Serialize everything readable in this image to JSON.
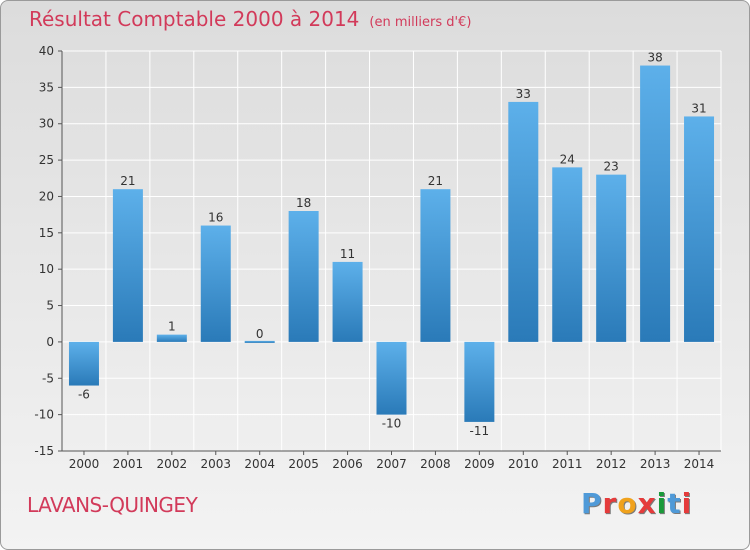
{
  "header": {
    "title": "Résultat Comptable 2000 à 2014",
    "unit": "(en milliers d'€)"
  },
  "footer": {
    "commune": "LAVANS-QUINGEY",
    "logo_text": "Proxiti",
    "logo_colors": [
      "#4f9ad8",
      "#e53b3b",
      "#f0a21c",
      "#e53b3b",
      "#1a9a3a",
      "#4f9ad8",
      "#e53b3b"
    ]
  },
  "colors": {
    "bar_light": "#5db0ea",
    "bar_dark": "#2a7ab8",
    "title": "#d23a5a",
    "grid": "#ffffff"
  },
  "chart_data": {
    "type": "bar",
    "title": "Résultat Comptable 2000 à 2014",
    "subtitle": "(en milliers d'€)",
    "xlabel": "",
    "ylabel": "",
    "categories": [
      "2000",
      "2001",
      "2002",
      "2003",
      "2004",
      "2005",
      "2006",
      "2007",
      "2008",
      "2009",
      "2010",
      "2011",
      "2012",
      "2013",
      "2014"
    ],
    "values": [
      -6,
      21,
      1,
      16,
      0,
      18,
      11,
      -10,
      21,
      -11,
      33,
      24,
      23,
      38,
      31
    ],
    "value_labels": [
      "-6",
      "21",
      "1",
      "16",
      "0",
      "18",
      "11",
      "-10",
      "21",
      "-11",
      "33",
      "24",
      "23",
      "38",
      "31"
    ],
    "ylim": [
      -15,
      40
    ],
    "yticks": [
      -15,
      -10,
      -5,
      0,
      5,
      10,
      15,
      20,
      25,
      30,
      35,
      40
    ],
    "ytick_labels": [
      "-15",
      "-10",
      "-5",
      "0",
      "5",
      "10",
      "15",
      "20",
      "25",
      "30",
      "35",
      "40"
    ],
    "grid": true,
    "legend": false
  }
}
